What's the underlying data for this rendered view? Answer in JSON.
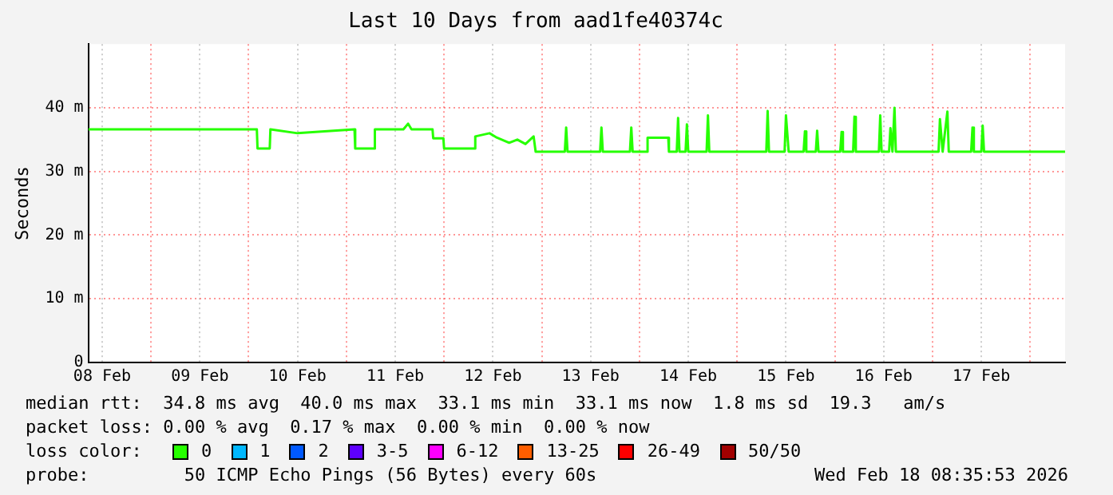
{
  "chart_data": {
    "type": "line",
    "title": "Last 10 Days from aad1fe40374c",
    "ylabel": "Seconds",
    "xlim": [
      "2026-02-08T08:35",
      "2026-02-18T08:35"
    ],
    "xticks": [
      {
        "value": "2026-02-08T12:00",
        "label": "08 Feb"
      },
      {
        "value": "2026-02-09T00:00",
        "label": null
      },
      {
        "value": "2026-02-09T12:00",
        "label": "09 Feb"
      },
      {
        "value": "2026-02-10T00:00",
        "label": null
      },
      {
        "value": "2026-02-10T12:00",
        "label": "10 Feb"
      },
      {
        "value": "2026-02-11T00:00",
        "label": null
      },
      {
        "value": "2026-02-11T12:00",
        "label": "11 Feb"
      },
      {
        "value": "2026-02-12T00:00",
        "label": null
      },
      {
        "value": "2026-02-12T12:00",
        "label": "12 Feb"
      },
      {
        "value": "2026-02-13T00:00",
        "label": null
      },
      {
        "value": "2026-02-13T12:00",
        "label": "13 Feb"
      },
      {
        "value": "2026-02-14T00:00",
        "label": null
      },
      {
        "value": "2026-02-14T12:00",
        "label": "14 Feb"
      },
      {
        "value": "2026-02-15T00:00",
        "label": null
      },
      {
        "value": "2026-02-15T12:00",
        "label": "15 Feb"
      },
      {
        "value": "2026-02-16T00:00",
        "label": null
      },
      {
        "value": "2026-02-16T12:00",
        "label": "16 Feb"
      },
      {
        "value": "2026-02-17T00:00",
        "label": null
      },
      {
        "value": "2026-02-17T12:00",
        "label": "17 Feb"
      },
      {
        "value": "2026-02-18T00:00",
        "label": null
      }
    ],
    "ylim": [
      0,
      50
    ],
    "yticks": [
      0,
      {
        "value": 10,
        "label": "10 m"
      },
      {
        "value": 20,
        "label": "20 m"
      },
      {
        "value": 30,
        "label": "30 m"
      },
      {
        "value": 40,
        "label": "40 m"
      }
    ],
    "grid": true,
    "legend": "bottom",
    "legend_title": "loss color:",
    "marker": "none",
    "line_style": "solid",
    "series": [
      {
        "name": "0",
        "color": "#26ff00",
        "x": [
          "2026-02-08T08:35",
          "2026-02-10T02:00",
          "2026-02-10T02:10",
          "2026-02-10T05:10",
          "2026-02-10T05:20",
          "2026-02-10T12:00",
          "2026-02-11T02:00",
          "2026-02-11T02:10",
          "2026-02-11T06:50",
          "2026-02-11T07:00",
          "2026-02-11T14:00",
          "2026-02-11T15:10",
          "2026-02-11T16:00",
          "2026-02-11T21:10",
          "2026-02-11T21:20",
          "2026-02-11T23:50",
          "2026-02-12T00:00",
          "2026-02-12T07:30",
          "2026-02-12T07:40",
          "2026-02-12T11:10",
          "2026-02-12T13:00",
          "2026-02-12T16:00",
          "2026-02-12T18:00",
          "2026-02-12T20:00",
          "2026-02-12T22:00",
          "2026-02-12T22:30",
          "2026-02-13T05:40",
          "2026-02-13T06:00",
          "2026-02-13T06:20",
          "2026-02-13T14:20",
          "2026-02-13T14:40",
          "2026-02-13T15:00",
          "2026-02-13T21:40",
          "2026-02-13T22:00",
          "2026-02-13T22:20",
          "2026-02-14T01:50",
          "2026-02-14T02:00",
          "2026-02-14T07:05",
          "2026-02-14T07:15",
          "2026-02-14T09:10",
          "2026-02-14T09:30",
          "2026-02-14T09:50",
          "2026-02-14T11:20",
          "2026-02-14T11:40",
          "2026-02-14T12:00",
          "2026-02-14T16:30",
          "2026-02-14T16:50",
          "2026-02-14T17:10",
          "2026-02-15T07:10",
          "2026-02-15T07:30",
          "2026-02-15T07:50",
          "2026-02-15T11:40",
          "2026-02-15T12:00",
          "2026-02-15T12:40",
          "2026-02-15T16:20",
          "2026-02-15T16:40",
          "2026-02-15T17:00",
          "2026-02-15T19:20",
          "2026-02-15T19:40",
          "2026-02-15T20:00",
          "2026-02-16T01:20",
          "2026-02-16T01:40",
          "2026-02-16T02:00",
          "2026-02-16T04:30",
          "2026-02-16T04:50",
          "2026-02-16T05:10",
          "2026-02-16T10:50",
          "2026-02-16T11:10",
          "2026-02-16T11:30",
          "2026-02-16T13:20",
          "2026-02-16T13:40",
          "2026-02-16T14:10",
          "2026-02-16T14:40",
          "2026-02-16T15:00",
          "2026-02-17T01:30",
          "2026-02-17T01:50",
          "2026-02-17T02:30",
          "2026-02-17T03:40",
          "2026-02-17T04:00",
          "2026-02-17T09:30",
          "2026-02-17T09:50",
          "2026-02-17T10:10",
          "2026-02-17T12:00",
          "2026-02-17T12:20",
          "2026-02-17T12:40",
          "2026-02-18T08:35"
        ],
        "values": [
          36.6,
          36.6,
          33.6,
          33.6,
          36.6,
          36.0,
          36.6,
          33.6,
          33.6,
          36.6,
          36.6,
          37.5,
          36.6,
          36.6,
          35.2,
          35.2,
          33.6,
          33.6,
          35.5,
          36.0,
          35.3,
          34.5,
          35.0,
          34.3,
          35.5,
          33.1,
          33.1,
          36.9,
          33.1,
          33.1,
          36.9,
          33.1,
          33.1,
          36.9,
          33.1,
          33.1,
          35.3,
          35.3,
          33.1,
          33.1,
          38.4,
          33.1,
          33.1,
          37.4,
          33.1,
          33.1,
          38.8,
          33.1,
          33.1,
          39.5,
          33.1,
          33.1,
          38.8,
          33.1,
          33.1,
          36.3,
          33.1,
          33.1,
          36.4,
          33.1,
          33.1,
          36.2,
          33.1,
          33.1,
          38.6,
          33.1,
          33.1,
          38.8,
          33.1,
          33.1,
          36.8,
          33.1,
          40.0,
          33.1,
          33.1,
          38.2,
          33.1,
          39.4,
          33.1,
          33.1,
          36.9,
          33.1,
          33.1,
          37.2,
          33.1,
          33.1
        ]
      },
      {
        "name": "1",
        "color": "#00b8ff"
      },
      {
        "name": "2",
        "color": "#0059ff"
      },
      {
        "name": "3-5",
        "color": "#5e00ff"
      },
      {
        "name": "6-12",
        "color": "#ff00ff"
      },
      {
        "name": "13-25",
        "color": "#ff5e00"
      },
      {
        "name": "26-49",
        "color": "#ff0000"
      },
      {
        "name": "50/50",
        "color": "#a10000"
      }
    ],
    "annotations": [
      "median rtt:  34.8 ms avg  40.0 ms max  33.1 ms min  33.1 ms now  1.8 ms sd  19.3   am/s",
      "packet loss: 0.00 % avg  0.17 % max  0.00 % min  0.00 % now",
      "probe:         50 ICMP Echo Pings (56 Bytes) every 60s",
      "Wed Feb 18 08:35:53 2026"
    ]
  }
}
